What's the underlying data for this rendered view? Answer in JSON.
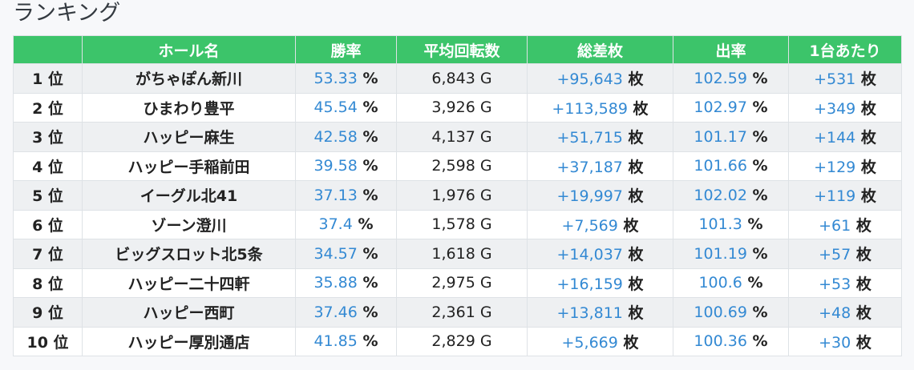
{
  "page": {
    "title": "ランキング"
  },
  "table": {
    "headers": [
      "",
      "ホール名",
      "勝率",
      "平均回転数",
      "総差枚",
      "出率",
      "1台あたり"
    ],
    "rows": [
      {
        "rank": "1 位",
        "hall": "がちゃぽん新川",
        "win_rate": "53.33",
        "win_rate_unit": "%",
        "avg_spins": "6,843 G",
        "total_diff": "+95,643",
        "total_diff_unit": "枚",
        "payout": "102.59",
        "payout_unit": "%",
        "per_machine": "+531",
        "per_machine_unit": "枚"
      },
      {
        "rank": "2 位",
        "hall": "ひまわり豊平",
        "win_rate": "45.54",
        "win_rate_unit": "%",
        "avg_spins": "3,926 G",
        "total_diff": "+113,589",
        "total_diff_unit": "枚",
        "payout": "102.97",
        "payout_unit": "%",
        "per_machine": "+349",
        "per_machine_unit": "枚"
      },
      {
        "rank": "3 位",
        "hall": "ハッピー麻生",
        "win_rate": "42.58",
        "win_rate_unit": "%",
        "avg_spins": "4,137 G",
        "total_diff": "+51,715",
        "total_diff_unit": "枚",
        "payout": "101.17",
        "payout_unit": "%",
        "per_machine": "+144",
        "per_machine_unit": "枚"
      },
      {
        "rank": "4 位",
        "hall": "ハッピー手稲前田",
        "win_rate": "39.58",
        "win_rate_unit": "%",
        "avg_spins": "2,598 G",
        "total_diff": "+37,187",
        "total_diff_unit": "枚",
        "payout": "101.66",
        "payout_unit": "%",
        "per_machine": "+129",
        "per_machine_unit": "枚"
      },
      {
        "rank": "5 位",
        "hall": "イーグル北41",
        "win_rate": "37.13",
        "win_rate_unit": "%",
        "avg_spins": "1,976 G",
        "total_diff": "+19,997",
        "total_diff_unit": "枚",
        "payout": "102.02",
        "payout_unit": "%",
        "per_machine": "+119",
        "per_machine_unit": "枚"
      },
      {
        "rank": "6 位",
        "hall": "ゾーン澄川",
        "win_rate": "37.4",
        "win_rate_unit": "%",
        "avg_spins": "1,578 G",
        "total_diff": "+7,569",
        "total_diff_unit": "枚",
        "payout": "101.3",
        "payout_unit": "%",
        "per_machine": "+61",
        "per_machine_unit": "枚"
      },
      {
        "rank": "7 位",
        "hall": "ビッグスロット北5条",
        "win_rate": "34.57",
        "win_rate_unit": "%",
        "avg_spins": "1,618 G",
        "total_diff": "+14,037",
        "total_diff_unit": "枚",
        "payout": "101.19",
        "payout_unit": "%",
        "per_machine": "+57",
        "per_machine_unit": "枚"
      },
      {
        "rank": "8 位",
        "hall": "ハッピー二十四軒",
        "win_rate": "35.88",
        "win_rate_unit": "%",
        "avg_spins": "2,975 G",
        "total_diff": "+16,159",
        "total_diff_unit": "枚",
        "payout": "100.6",
        "payout_unit": "%",
        "per_machine": "+53",
        "per_machine_unit": "枚"
      },
      {
        "rank": "9 位",
        "hall": "ハッピー西町",
        "win_rate": "37.46",
        "win_rate_unit": "%",
        "avg_spins": "2,361 G",
        "total_diff": "+13,811",
        "total_diff_unit": "枚",
        "payout": "100.69",
        "payout_unit": "%",
        "per_machine": "+48",
        "per_machine_unit": "枚"
      },
      {
        "rank": "10 位",
        "hall": "ハッピー厚別通店",
        "win_rate": "41.85",
        "win_rate_unit": "%",
        "avg_spins": "2,829 G",
        "total_diff": "+5,669",
        "total_diff_unit": "枚",
        "payout": "100.36",
        "payout_unit": "%",
        "per_machine": "+30",
        "per_machine_unit": "枚"
      }
    ]
  },
  "colors": {
    "header_bg": "#3cc46a",
    "accent_number": "#3389d3",
    "row_stripe": "#eef0f2"
  }
}
